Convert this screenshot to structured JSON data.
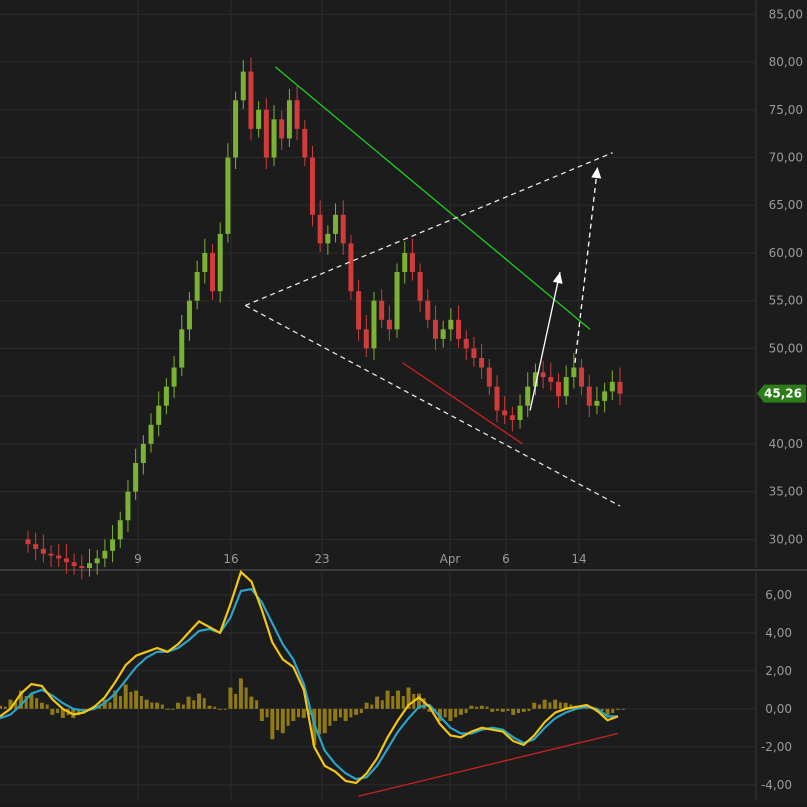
{
  "colors": {
    "background": "#1c1c1c",
    "grid": "#2b2b2b",
    "axis_text": "#9a9a9a",
    "separator": "#3a3a3a",
    "candle_up": "#7bb234",
    "candle_down": "#d03c3c",
    "trend_resistance": "#22cc22",
    "trend_support": "#cc2222",
    "dashed_channel": "#e6e6e6",
    "arrow": "#ffffff",
    "macd_line": "#f3c515",
    "signal_line": "#2aa3c9",
    "histogram": "#8f7a16",
    "price_badge_bg": "#2c7d18",
    "price_badge_text": "#ffffff"
  },
  "chart_data": [
    {
      "type": "candlestick",
      "title": "",
      "last_price_label": "45,26",
      "x_tick_labels": [
        "9",
        "16",
        "23",
        "Apr",
        "6",
        "14"
      ],
      "y_tick_labels": [
        "30,00",
        "35,00",
        "40,00",
        "45,00",
        "50,00",
        "55,00",
        "60,00",
        "65,00",
        "70,00",
        "75,00",
        "80,00",
        "85,00"
      ],
      "ylim": [
        27,
        86.5
      ],
      "grid": true,
      "series_close_approx": [
        29.5,
        29.0,
        28.5,
        28.3,
        28.0,
        27.6,
        27.2,
        27.0,
        27.5,
        28.0,
        28.8,
        30.0,
        32.0,
        35.0,
        38.0,
        40.0,
        42.0,
        44.0,
        46.0,
        48.0,
        52.0,
        55.0,
        58.0,
        60.0,
        56.0,
        62.0,
        70.0,
        76.0,
        79.0,
        73.0,
        75.0,
        70.0,
        74.0,
        72.0,
        76.0,
        73.0,
        70.0,
        64.0,
        61.0,
        62.0,
        64.0,
        61.0,
        56.0,
        52.0,
        50.0,
        55.0,
        53.0,
        52.0,
        58.0,
        60.0,
        58.0,
        55.0,
        53.0,
        51.0,
        52.0,
        53.0,
        51.0,
        50.0,
        49.0,
        48.0,
        46.0,
        43.5,
        43.0,
        42.5,
        44.0,
        46.0,
        47.5,
        47.0,
        46.5,
        45.0,
        47.0,
        48.0,
        46.0,
        44.0,
        44.5,
        45.5,
        46.5,
        45.26
      ],
      "trendlines": [
        {
          "kind": "resistance",
          "from": [
            16.5,
            79.5
          ],
          "to": [
            37.5,
            52.0
          ]
        },
        {
          "kind": "support",
          "from": [
            25.0,
            48.5
          ],
          "to": [
            33.0,
            40.0
          ]
        },
        {
          "kind": "channel-upper",
          "from": [
            14.5,
            54.5
          ],
          "to": [
            39.0,
            70.5
          ]
        },
        {
          "kind": "channel-lower",
          "from": [
            14.5,
            54.5
          ],
          "to": [
            39.5,
            33.5
          ]
        }
      ],
      "arrows": [
        {
          "style": "solid",
          "from": [
            33.5,
            43.5
          ],
          "to": [
            35.5,
            58.0
          ]
        },
        {
          "style": "dashed",
          "from": [
            36.5,
            48.5
          ],
          "to": [
            38.0,
            69.0
          ]
        }
      ]
    },
    {
      "type": "macd",
      "title": "",
      "y_tick_labels": [
        "-4,00",
        "-2,00",
        "0,00",
        "2,00",
        "4,00",
        "6,00"
      ],
      "ylim": [
        -4.8,
        7.2
      ],
      "grid": true,
      "macd_values": [
        -0.4,
        0.0,
        0.8,
        1.3,
        1.2,
        0.5,
        0.0,
        -0.3,
        -0.2,
        0.1,
        0.6,
        1.4,
        2.3,
        2.8,
        3.0,
        3.2,
        3.0,
        3.4,
        4.0,
        4.6,
        4.3,
        4.0,
        5.5,
        7.2,
        6.7,
        5.2,
        3.5,
        2.6,
        2.2,
        1.0,
        -2.0,
        -3.0,
        -3.3,
        -3.8,
        -3.9,
        -3.4,
        -2.6,
        -1.5,
        -0.6,
        0.2,
        0.6,
        0.1,
        -0.8,
        -1.4,
        -1.5,
        -1.2,
        -1.0,
        -1.1,
        -1.2,
        -1.7,
        -1.9,
        -1.4,
        -0.7,
        -0.2,
        0.0,
        0.1,
        0.2,
        -0.1,
        -0.6,
        -0.4
      ],
      "signal_values": [
        -0.5,
        -0.3,
        0.2,
        0.8,
        1.0,
        0.7,
        0.3,
        0.0,
        -0.1,
        0.0,
        0.3,
        0.8,
        1.5,
        2.2,
        2.7,
        3.0,
        3.0,
        3.2,
        3.6,
        4.1,
        4.2,
        4.0,
        4.8,
        6.2,
        6.3,
        5.6,
        4.5,
        3.4,
        2.6,
        1.3,
        -0.8,
        -2.2,
        -2.9,
        -3.4,
        -3.7,
        -3.6,
        -3.0,
        -2.1,
        -1.2,
        -0.5,
        0.1,
        0.2,
        -0.4,
        -1.0,
        -1.3,
        -1.3,
        -1.1,
        -1.0,
        -1.1,
        -1.5,
        -1.8,
        -1.6,
        -1.0,
        -0.5,
        -0.2,
        0.0,
        0.1,
        0.0,
        -0.4,
        -0.4
      ],
      "trendline": {
        "kind": "divergence",
        "from": [
          0.58,
          -4.6
        ],
        "to": [
          1.0,
          -1.3
        ]
      }
    }
  ]
}
